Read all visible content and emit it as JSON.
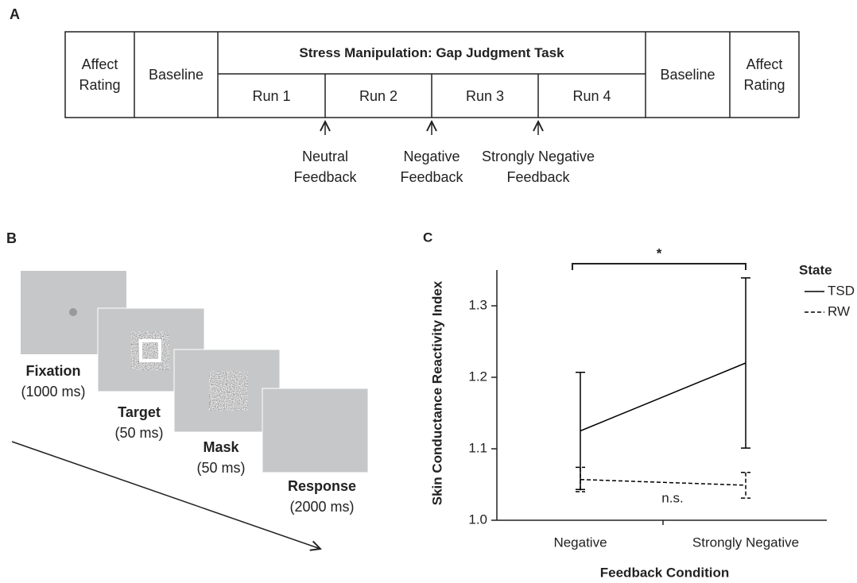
{
  "panel_a": {
    "label": "A",
    "header": "Stress Manipulation: Gap Judgment Task",
    "blocks": [
      "Affect Rating",
      "Baseline",
      "Baseline",
      "Affect Rating"
    ],
    "runs": [
      "Run 1",
      "Run 2",
      "Run 3",
      "Run 4"
    ],
    "feedback": [
      "Neutral Feedback",
      "Negative Feedback",
      "Strongly Negative Feedback"
    ]
  },
  "panel_b": {
    "label": "B",
    "steps": [
      {
        "name": "Fixation",
        "duration": "(1000 ms)"
      },
      {
        "name": "Target",
        "duration": "(50 ms)"
      },
      {
        "name": "Mask",
        "duration": "(50 ms)"
      },
      {
        "name": "Response",
        "duration": "(2000 ms)"
      }
    ]
  },
  "chart_data": {
    "type": "line",
    "panel_label": "C",
    "xlabel": "Feedback Condition",
    "ylabel": "Skin Conductance Reactivity Index",
    "categories": [
      "Negative",
      "Strongly Negative"
    ],
    "series": [
      {
        "name": "TSD",
        "color": "#000000",
        "line_style": "solid",
        "values": [
          1.125,
          1.22
        ],
        "errors": [
          0.082,
          0.119
        ]
      },
      {
        "name": "RW",
        "color": "#000000",
        "line_style": "dashed",
        "values": [
          1.057,
          1.049
        ],
        "errors": [
          0.017,
          0.018
        ]
      }
    ],
    "ylim": [
      1.0,
      1.35
    ],
    "yticks": [
      {
        "value": 1.0,
        "label": "1.0"
      },
      1.1,
      1.2,
      1.3
    ],
    "legend_title": "State",
    "legend_position": "right",
    "annotations": [
      {
        "text": "*"
      },
      {
        "text": "n.s."
      }
    ]
  }
}
